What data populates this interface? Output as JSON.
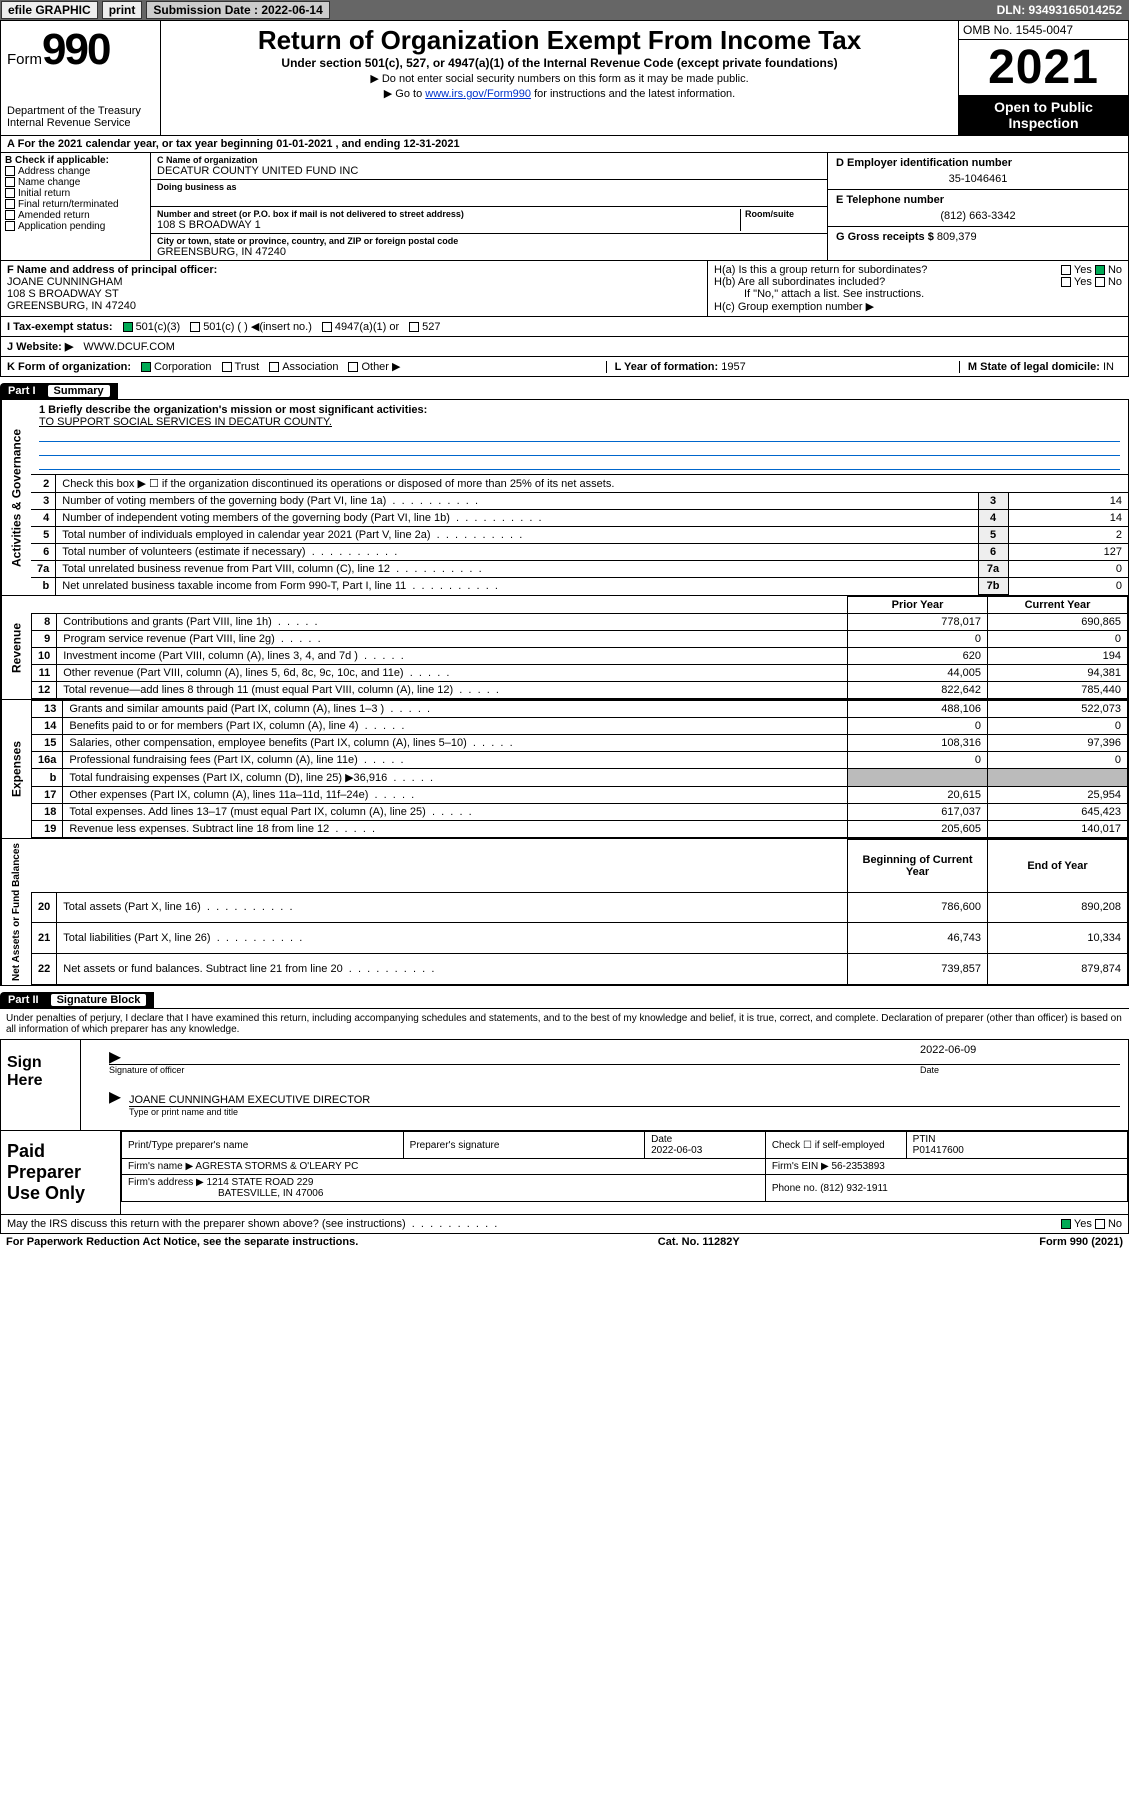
{
  "topbar": {
    "efile": "efile GRAPHIC",
    "print": "print",
    "sub_label": "Submission Date : 2022-06-14",
    "dln": "DLN: 93493165014252"
  },
  "header": {
    "form": "Form",
    "num": "990",
    "dept": "Department of the Treasury\nInternal Revenue Service",
    "title": "Return of Organization Exempt From Income Tax",
    "sub": "Under section 501(c), 527, or 4947(a)(1) of the Internal Revenue Code (except private foundations)",
    "note1": "▶ Do not enter social security numbers on this form as it may be made public.",
    "note2_pre": "▶ Go to ",
    "note2_link": "www.irs.gov/Form990",
    "note2_post": " for instructions and the latest information.",
    "omb": "OMB No. 1545-0047",
    "year": "2021",
    "open": "Open to Public Inspection"
  },
  "period": "For the 2021 calendar year, or tax year beginning 01-01-2021   , and ending 12-31-2021",
  "checkB": {
    "hdr": "B Check if applicable:",
    "items": [
      "Address change",
      "Name change",
      "Initial return",
      "Final return/terminated",
      "Amended return",
      "Application pending"
    ]
  },
  "org": {
    "name_lbl": "C Name of organization",
    "name": "DECATUR COUNTY UNITED FUND INC",
    "dba_lbl": "Doing business as",
    "addr_lbl": "Number and street (or P.O. box if mail is not delivered to street address)",
    "room_lbl": "Room/suite",
    "addr": "108 S BROADWAY 1",
    "city_lbl": "City or town, state or province, country, and ZIP or foreign postal code",
    "city": "GREENSBURG, IN  47240"
  },
  "right": {
    "ein_lbl": "D Employer identification number",
    "ein": "35-1046461",
    "tel_lbl": "E Telephone number",
    "tel": "(812) 663-3342",
    "gross_lbl": "G Gross receipts $",
    "gross": "809,379"
  },
  "officer": {
    "lbl": "F  Name and address of principal officer:",
    "name": "JOANE CUNNINGHAM",
    "addr": "108 S BROADWAY ST",
    "city": "GREENSBURG, IN  47240"
  },
  "h": {
    "a": "H(a)  Is this a group return for subordinates?",
    "a_ans": "No",
    "b": "H(b)  Are all subordinates included?",
    "b_note": "If \"No,\" attach a list. See instructions.",
    "c": "H(c)  Group exemption number ▶"
  },
  "status": {
    "lbl": "I   Tax-exempt status:",
    "c3": "501(c)(3)",
    "c": "501(c) (  ) ◀(insert no.)",
    "a1": "4947(a)(1) or",
    "s527": "527"
  },
  "website": {
    "lbl": "J   Website: ▶",
    "val": "WWW.DCUF.COM"
  },
  "korg": {
    "lbl": "K Form of organization:",
    "opts": [
      "Corporation",
      "Trust",
      "Association",
      "Other ▶"
    ],
    "year_lbl": "L Year of formation:",
    "year": "1957",
    "state_lbl": "M State of legal domicile:",
    "state": "IN"
  },
  "part1": {
    "num": "Part I",
    "title": "Summary"
  },
  "mission": {
    "lbl": "1   Briefly describe the organization's mission or most significant activities:",
    "text": "TO SUPPORT SOCIAL SERVICES IN DECATUR COUNTY."
  },
  "gov_rows": [
    {
      "n": "2",
      "t": "Check this box ▶ ☐  if the organization discontinued its operations or disposed of more than 25% of its net assets.",
      "box": "",
      "v": ""
    },
    {
      "n": "3",
      "t": "Number of voting members of the governing body (Part VI, line 1a)",
      "box": "3",
      "v": "14"
    },
    {
      "n": "4",
      "t": "Number of independent voting members of the governing body (Part VI, line 1b)",
      "box": "4",
      "v": "14"
    },
    {
      "n": "5",
      "t": "Total number of individuals employed in calendar year 2021 (Part V, line 2a)",
      "box": "5",
      "v": "2"
    },
    {
      "n": "6",
      "t": "Total number of volunteers (estimate if necessary)",
      "box": "6",
      "v": "127"
    },
    {
      "n": "7a",
      "t": "Total unrelated business revenue from Part VIII, column (C), line 12",
      "box": "7a",
      "v": "0"
    },
    {
      "n": "b",
      "t": "Net unrelated business taxable income from Form 990-T, Part I, line 11",
      "box": "7b",
      "v": "0"
    }
  ],
  "rev_hdr": {
    "prior": "Prior Year",
    "curr": "Current Year"
  },
  "revenue": [
    {
      "n": "8",
      "t": "Contributions and grants (Part VIII, line 1h)",
      "p": "778,017",
      "c": "690,865"
    },
    {
      "n": "9",
      "t": "Program service revenue (Part VIII, line 2g)",
      "p": "0",
      "c": "0"
    },
    {
      "n": "10",
      "t": "Investment income (Part VIII, column (A), lines 3, 4, and 7d )",
      "p": "620",
      "c": "194"
    },
    {
      "n": "11",
      "t": "Other revenue (Part VIII, column (A), lines 5, 6d, 8c, 9c, 10c, and 11e)",
      "p": "44,005",
      "c": "94,381"
    },
    {
      "n": "12",
      "t": "Total revenue—add lines 8 through 11 (must equal Part VIII, column (A), line 12)",
      "p": "822,642",
      "c": "785,440"
    }
  ],
  "expenses": [
    {
      "n": "13",
      "t": "Grants and similar amounts paid (Part IX, column (A), lines 1–3 )",
      "p": "488,106",
      "c": "522,073"
    },
    {
      "n": "14",
      "t": "Benefits paid to or for members (Part IX, column (A), line 4)",
      "p": "0",
      "c": "0"
    },
    {
      "n": "15",
      "t": "Salaries, other compensation, employee benefits (Part IX, column (A), lines 5–10)",
      "p": "108,316",
      "c": "97,396"
    },
    {
      "n": "16a",
      "t": "Professional fundraising fees (Part IX, column (A), line 11e)",
      "p": "0",
      "c": "0"
    },
    {
      "n": "b",
      "t": "Total fundraising expenses (Part IX, column (D), line 25) ▶36,916",
      "p": "",
      "c": "",
      "shade": true
    },
    {
      "n": "17",
      "t": "Other expenses (Part IX, column (A), lines 11a–11d, 11f–24e)",
      "p": "20,615",
      "c": "25,954"
    },
    {
      "n": "18",
      "t": "Total expenses. Add lines 13–17 (must equal Part IX, column (A), line 25)",
      "p": "617,037",
      "c": "645,423"
    },
    {
      "n": "19",
      "t": "Revenue less expenses. Subtract line 18 from line 12",
      "p": "205,605",
      "c": "140,017"
    }
  ],
  "assets_hdr": {
    "beg": "Beginning of Current Year",
    "end": "End of Year"
  },
  "assets": [
    {
      "n": "20",
      "t": "Total assets (Part X, line 16)",
      "p": "786,600",
      "c": "890,208"
    },
    {
      "n": "21",
      "t": "Total liabilities (Part X, line 26)",
      "p": "46,743",
      "c": "10,334"
    },
    {
      "n": "22",
      "t": "Net assets or fund balances. Subtract line 21 from line 20",
      "p": "739,857",
      "c": "879,874"
    }
  ],
  "part2": {
    "num": "Part II",
    "title": "Signature Block"
  },
  "penalties": "Under penalties of perjury, I declare that I have examined this return, including accompanying schedules and statements, and to the best of my knowledge and belief, it is true, correct, and complete. Declaration of preparer (other than officer) is based on all information of which preparer has any knowledge.",
  "sign": {
    "here": "Sign Here",
    "sig_lbl": "Signature of officer",
    "date": "2022-06-09",
    "date_lbl": "Date",
    "name": "JOANE CUNNINGHAM  EXECUTIVE DIRECTOR",
    "name_lbl": "Type or print name and title"
  },
  "preparer": {
    "lbl": "Paid Preparer Use Only",
    "pt_name_lbl": "Print/Type preparer's name",
    "sig_lbl": "Preparer's signature",
    "date_lbl": "Date",
    "date": "2022-06-03",
    "check_lbl": "Check ☐ if self-employed",
    "ptin_lbl": "PTIN",
    "ptin": "P01417600",
    "firm_name_lbl": "Firm's name    ▶",
    "firm_name": "AGRESTA STORMS & O'LEARY PC",
    "firm_ein_lbl": "Firm's EIN ▶",
    "firm_ein": "56-2353893",
    "firm_addr_lbl": "Firm's address ▶",
    "firm_addr1": "1214 STATE ROAD 229",
    "firm_addr2": "BATESVILLE, IN  47006",
    "phone_lbl": "Phone no.",
    "phone": "(812) 932-1911"
  },
  "discuss": {
    "q": "May the IRS discuss this return with the preparer shown above? (see instructions)",
    "yes": "Yes",
    "no": "No"
  },
  "footer": {
    "left": "For Paperwork Reduction Act Notice, see the separate instructions.",
    "mid": "Cat. No. 11282Y",
    "right": "Form 990 (2021)"
  },
  "vlabels": {
    "gov": "Activities & Governance",
    "rev": "Revenue",
    "exp": "Expenses",
    "net": "Net Assets or Fund Balances"
  }
}
